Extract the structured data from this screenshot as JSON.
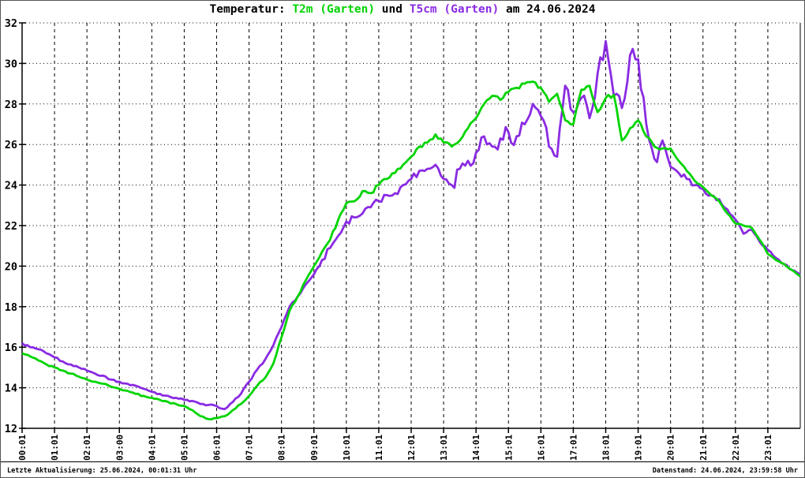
{
  "window": {
    "background": "#ffffff",
    "border_color": "#000000"
  },
  "title": {
    "prefix": "Temperatur: ",
    "series1_label": "T2m (Garten)",
    "middle": " und ",
    "series2_label": "T5cm (Garten)",
    "suffix": " am 24.06.2024",
    "series1_color": "#00d400",
    "series2_color": "#8a2be2"
  },
  "footer": {
    "left": "Letzte Aktualisierung: 25.06.2024, 00:01:31 Uhr",
    "right": "Datenstand: 24.06.2024, 23:59:58 Uhr"
  },
  "chart_data": {
    "type": "line",
    "title": "Temperatur: T2m (Garten) und T5cm (Garten) am 24.06.2024",
    "xlabel": "",
    "ylabel": "",
    "ylim": [
      12,
      32
    ],
    "y_ticks": [
      12,
      14,
      16,
      18,
      20,
      22,
      24,
      26,
      28,
      30,
      32
    ],
    "x_range_hours": [
      0,
      24
    ],
    "x_step_hours": 0.25,
    "x_tick_hours": [
      0,
      1,
      2,
      3,
      4,
      5,
      6,
      7,
      8,
      9,
      10,
      11,
      12,
      13,
      14,
      15,
      16,
      17,
      18,
      19,
      20,
      21,
      22,
      23
    ],
    "x_tick_labels": [
      "00:01",
      "01:01",
      "02:01",
      "03:00",
      "04:01",
      "05:01",
      "06:01",
      "07:01",
      "08:01",
      "09:01",
      "10:01",
      "11:01",
      "12:01",
      "13:01",
      "14:01",
      "15:01",
      "16:01",
      "17:01",
      "18:01",
      "19:01",
      "20:01",
      "21:01",
      "22:01",
      "23:01"
    ],
    "grid": {
      "horizontal_style": "dotted",
      "vertical_style": "dashed",
      "color": "#000000"
    },
    "legend_position": "in-title",
    "series": [
      {
        "name": "T5cm (Garten)",
        "color": "#8a2be2",
        "line_width": 2.8,
        "noise_base": 0.05,
        "noise_spans": [
          {
            "from": 9.0,
            "to": 13.2,
            "amp": 0.18
          },
          {
            "from": 13.2,
            "to": 19.6,
            "amp": 0.5
          },
          {
            "from": 19.6,
            "to": 22.5,
            "amp": 0.14
          }
        ],
        "values": [
          16.2,
          16.0,
          15.9,
          15.7,
          15.5,
          15.3,
          15.15,
          15.0,
          14.85,
          14.7,
          14.6,
          14.4,
          14.3,
          14.2,
          14.1,
          13.95,
          13.8,
          13.7,
          13.6,
          13.5,
          13.4,
          13.35,
          13.2,
          13.15,
          13.1,
          12.95,
          13.3,
          13.7,
          14.3,
          14.9,
          15.4,
          16.1,
          17.0,
          18.0,
          18.5,
          19.1,
          19.6,
          20.3,
          20.9,
          21.5,
          22.2,
          22.4,
          22.6,
          22.9,
          23.2,
          23.5,
          23.6,
          24.0,
          24.3,
          24.7,
          24.8,
          25.0,
          24.3,
          24.0,
          24.8,
          25.2,
          25.6,
          26.4,
          25.9,
          26.3,
          26.6,
          26.4,
          27.0,
          28.0,
          27.4,
          25.9,
          25.4,
          28.9,
          27.6,
          28.3,
          27.3,
          29.5,
          31.1,
          28.4,
          27.8,
          30.4,
          30.2,
          27.0,
          25.3,
          26.2,
          24.9,
          24.6,
          24.3,
          24.0,
          23.8,
          23.5,
          23.3,
          22.8,
          22.3,
          21.6,
          21.8,
          21.2,
          20.8,
          20.4,
          20.1,
          19.8,
          19.6
        ]
      },
      {
        "name": "T2m (Garten)",
        "color": "#00d400",
        "line_width": 2.8,
        "noise_base": 0.04,
        "noise_spans": [
          {
            "from": 9.5,
            "to": 19.8,
            "amp": 0.1
          }
        ],
        "values": [
          15.7,
          15.55,
          15.35,
          15.15,
          15.0,
          14.85,
          14.7,
          14.55,
          14.4,
          14.3,
          14.2,
          14.05,
          13.95,
          13.85,
          13.7,
          13.6,
          13.5,
          13.4,
          13.3,
          13.2,
          13.1,
          12.9,
          12.6,
          12.45,
          12.5,
          12.6,
          12.9,
          13.2,
          13.6,
          14.1,
          14.5,
          15.2,
          16.5,
          17.8,
          18.5,
          19.3,
          20.0,
          20.7,
          21.3,
          22.3,
          23.1,
          23.2,
          23.7,
          23.6,
          24.0,
          24.3,
          24.6,
          25.0,
          25.4,
          25.9,
          26.1,
          26.5,
          26.1,
          25.9,
          26.2,
          26.8,
          27.3,
          28.0,
          28.4,
          28.2,
          28.6,
          28.8,
          29.0,
          29.1,
          28.8,
          28.1,
          28.5,
          27.2,
          27.0,
          28.7,
          28.9,
          27.6,
          28.3,
          28.45,
          26.2,
          26.8,
          27.2,
          26.4,
          25.9,
          25.8,
          25.8,
          25.2,
          24.7,
          24.2,
          23.9,
          23.5,
          23.2,
          22.6,
          22.1,
          22.0,
          21.9,
          21.3,
          20.6,
          20.3,
          20.1,
          19.8,
          19.5
        ]
      }
    ]
  }
}
